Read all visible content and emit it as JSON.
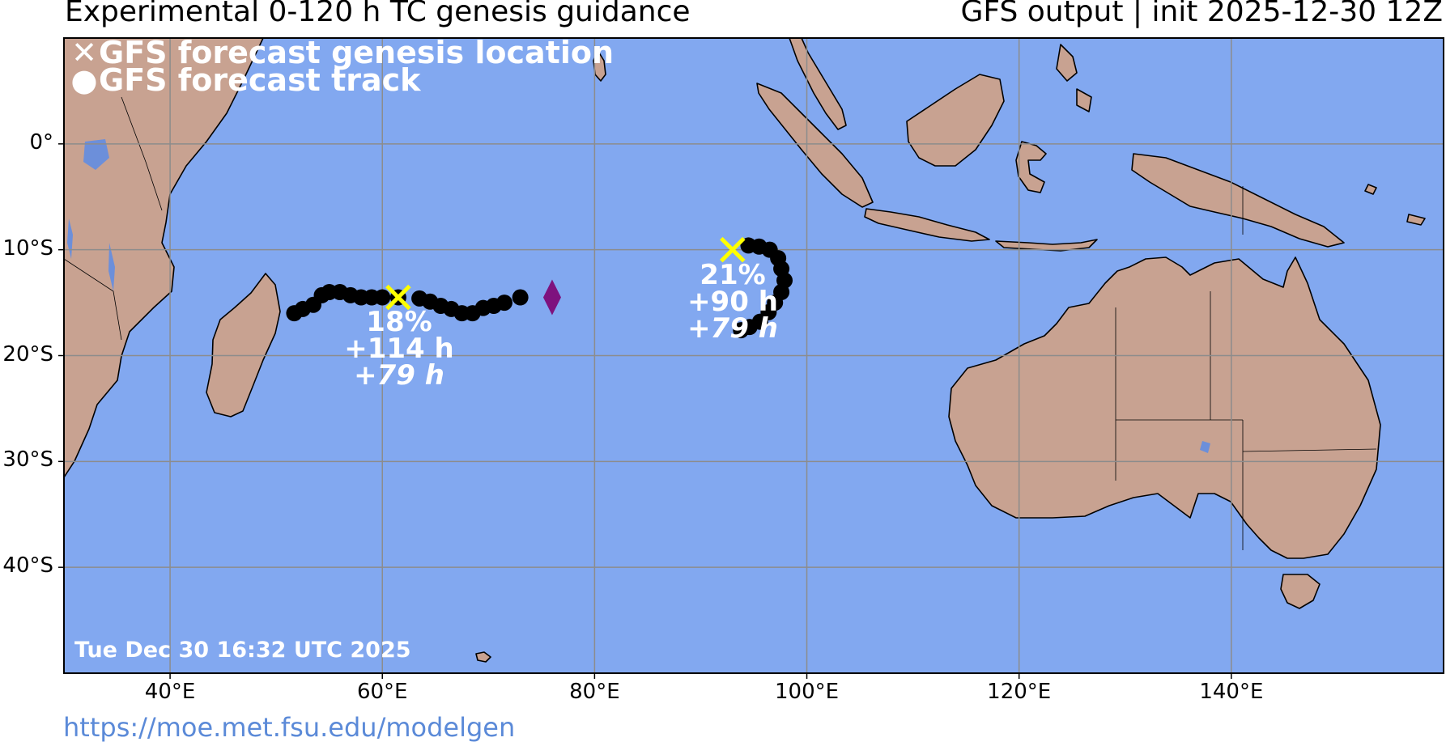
{
  "header": {
    "title_left": "Experimental 0-120 h TC genesis guidance",
    "title_right": "GFS output | init 2025-12-30 12Z"
  },
  "legend": {
    "genesis_label": "GFS forecast genesis location",
    "genesis_symbol": "✕",
    "track_label": "GFS forecast track",
    "track_symbol": "●"
  },
  "map": {
    "lon_range": [
      30,
      160
    ],
    "lat_range": [
      -50,
      10
    ],
    "ocean_color": "#82a8f0",
    "land_color": "#c8a291",
    "grid_color": "#8c8c8c",
    "genesis_marker_color": "#ffff00",
    "track_color": "#000000",
    "origin_marker_color": "#7e127e",
    "y_ticks": [
      {
        "lat": 0,
        "label": "0°"
      },
      {
        "lat": -10,
        "label": "10°S"
      },
      {
        "lat": -20,
        "label": "20°S"
      },
      {
        "lat": -30,
        "label": "30°S"
      },
      {
        "lat": -40,
        "label": "40°S"
      }
    ],
    "x_ticks": [
      {
        "lon": 40,
        "label": "40°E"
      },
      {
        "lon": 60,
        "label": "60°E"
      },
      {
        "lon": 80,
        "label": "80°E"
      },
      {
        "lon": 100,
        "label": "100°E"
      },
      {
        "lon": 120,
        "label": "120°E"
      },
      {
        "lon": 140,
        "label": "140°E"
      }
    ]
  },
  "storms": [
    {
      "id": "storm-west",
      "probability": "18%",
      "genesis_time": "+114 h",
      "lead_time": "+79 h",
      "genesis": {
        "lon": 61.5,
        "lat": -14.5
      },
      "origin": {
        "lon": 76,
        "lat": -14.5
      },
      "track": [
        {
          "lon": 73,
          "lat": -14.5
        },
        {
          "lon": 71.5,
          "lat": -15
        },
        {
          "lon": 70.5,
          "lat": -15.3
        },
        {
          "lon": 69.5,
          "lat": -15.5
        },
        {
          "lon": 68.5,
          "lat": -16
        },
        {
          "lon": 67.5,
          "lat": -16
        },
        {
          "lon": 66.5,
          "lat": -15.6
        },
        {
          "lon": 65.5,
          "lat": -15.3
        },
        {
          "lon": 64.5,
          "lat": -14.9
        },
        {
          "lon": 63.5,
          "lat": -14.6
        },
        {
          "lon": 61.5,
          "lat": -14.5
        },
        {
          "lon": 60,
          "lat": -14.5
        },
        {
          "lon": 59,
          "lat": -14.5
        },
        {
          "lon": 58,
          "lat": -14.5
        },
        {
          "lon": 57,
          "lat": -14.3
        },
        {
          "lon": 56,
          "lat": -14
        },
        {
          "lon": 55,
          "lat": -14
        },
        {
          "lon": 54.3,
          "lat": -14.3
        },
        {
          "lon": 53.5,
          "lat": -15.2
        },
        {
          "lon": 52.5,
          "lat": -15.6
        },
        {
          "lon": 51.7,
          "lat": -16
        }
      ]
    },
    {
      "id": "storm-east",
      "probability": "21%",
      "genesis_time": "+90 h",
      "lead_time": "+79 h",
      "genesis": {
        "lon": 93,
        "lat": -10
      },
      "track": [
        {
          "lon": 94.5,
          "lat": -9.6
        },
        {
          "lon": 95.5,
          "lat": -9.7
        },
        {
          "lon": 96.5,
          "lat": -10
        },
        {
          "lon": 97.3,
          "lat": -10.8
        },
        {
          "lon": 97.6,
          "lat": -11.8
        },
        {
          "lon": 97.9,
          "lat": -12.9
        },
        {
          "lon": 97.6,
          "lat": -14
        },
        {
          "lon": 97,
          "lat": -15
        },
        {
          "lon": 96.4,
          "lat": -15.9
        },
        {
          "lon": 95.6,
          "lat": -16.8
        },
        {
          "lon": 94.6,
          "lat": -17.3
        },
        {
          "lon": 93.8,
          "lat": -17.6
        }
      ]
    }
  ],
  "timestamp": "Tue Dec 30 16:32 UTC 2025",
  "footer_url": "https://moe.met.fsu.edu/modelgen"
}
